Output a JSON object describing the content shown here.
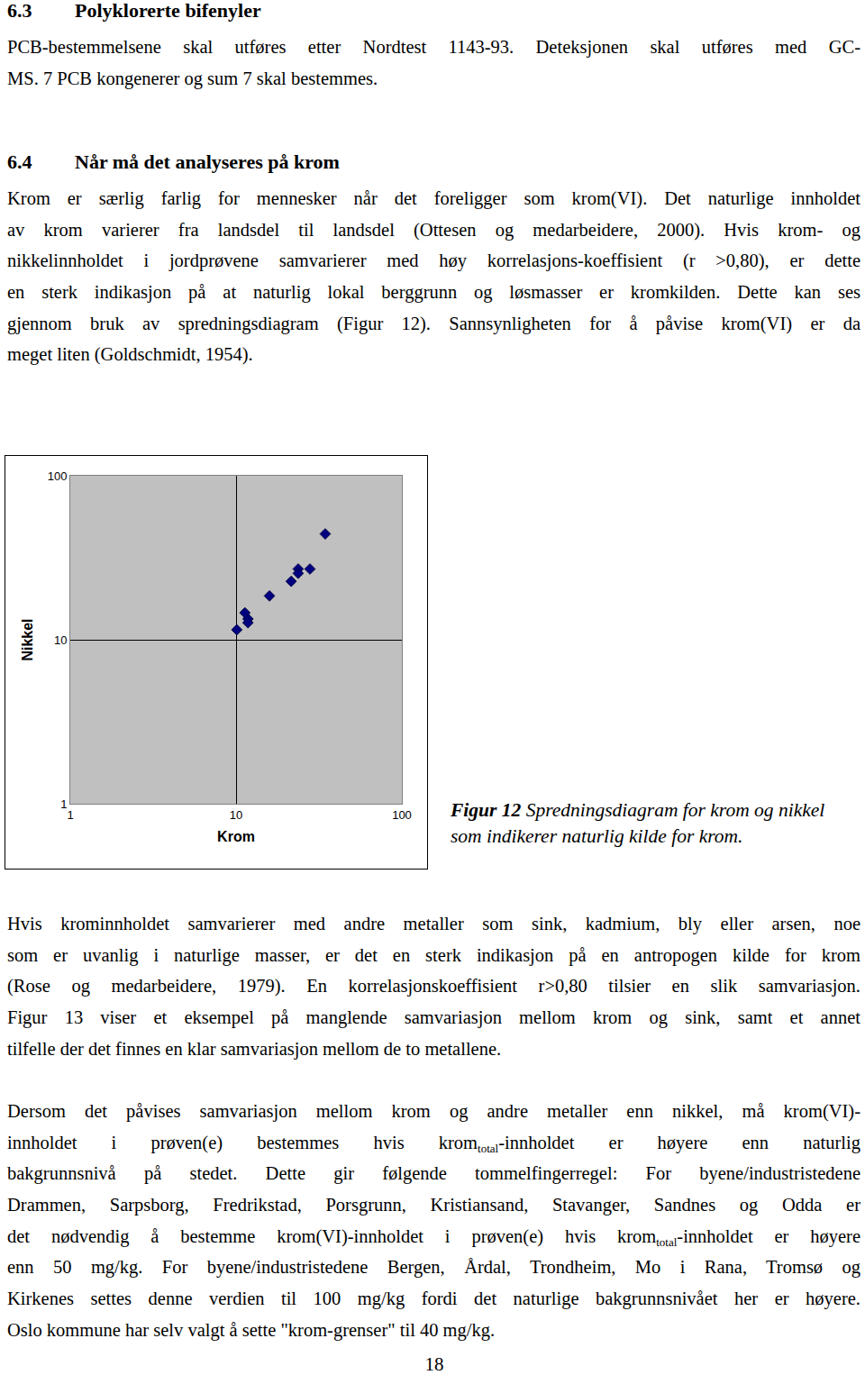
{
  "page": {
    "blocks": [
      {
        "kind": "heading",
        "number": "6.3",
        "title": "Polyklorerte bifenyler"
      },
      {
        "kind": "paragraph",
        "lines": [
          "PCB-bestemmelsene skal utføres etter Nordtest 1143-93. Deteksjonen skal utføres med GC-",
          "MS. 7 PCB kongenerer og sum 7 skal bestemmes."
        ]
      },
      {
        "kind": "heading",
        "number": "6.4",
        "title": "Når må det analyseres på krom"
      },
      {
        "kind": "paragraph",
        "lines": [
          "Krom er særlig farlig for mennesker når det foreligger som krom(VI). Det naturlige innholdet",
          "av krom varierer fra landsdel til landsdel (Ottesen og medarbeidere, 2000). Hvis krom- og",
          "nikkelinnholdet i jordprøvene samvarierer med høy korrelasjons-koeffisient (r >0,80), er dette",
          "en sterk indikasjon på at naturlig lokal berggrunn og løsmasser er kromkilden. Dette kan ses",
          "gjennom bruk av spredningsdiagram (Figur 12). Sannsynligheten for å påvise krom(VI) er da",
          "meget liten (Goldschmidt, 1954)."
        ]
      },
      {
        "kind": "paragraph",
        "lines": [
          "Hvis krominnholdet samvarierer med andre metaller som sink, kadmium, bly eller arsen, noe",
          "som er uvanlig i naturlige masser, er det en sterk indikasjon på en antropogen kilde for krom",
          "(Rose og medarbeidere, 1979). En korrelasjonskoeffisient r>0,80 tilsier en slik samvariasjon.",
          "Figur 13 viser et eksempel på manglende samvariasjon mellom krom og sink, samt et annet",
          "tilfelle der det finnes en klar samvariasjon mellom de to metallene."
        ]
      },
      {
        "kind": "paragraph",
        "lines": [
          "Dersom det påvises samvariasjon mellom krom og andre metaller enn nikkel, må krom(VI)-",
          [
            "innholdet i prøven(e) bestemmes hvis krom",
            {
              "sub": "total"
            },
            "-innholdet er høyere enn naturlig"
          ],
          "bakgrunnsnivå på stedet. Dette gir følgende tommelfingerregel: For byene/industristedene",
          "Drammen, Sarpsborg, Fredrikstad, Porsgrunn, Kristiansand, Stavanger, Sandnes og Odda er",
          [
            "det nødvendig å bestemme krom(VI)-innholdet i prøven(e) hvis krom",
            {
              "sub": "total"
            },
            "-innholdet er høyere"
          ],
          "enn 50 mg/kg. For byene/industristedene Bergen, Årdal, Trondheim, Mo i Rana, Tromsø og",
          "Kirkenes settes denne verdien til 100 mg/kg fordi det naturlige bakgrunnsnivået her er høyere.",
          "Oslo kommune har selv valgt å sette \"krom-grenser\" til 40 mg/kg."
        ]
      }
    ],
    "figure_caption": {
      "label": "Figur 12",
      "text": "Spredningsdiagram for krom og nikkel som indikerer naturlig kilde for krom."
    },
    "page_number": "18"
  },
  "chart_data": {
    "type": "scatter",
    "x_label": "Krom",
    "y_label": "Nikkel",
    "x": [
      10.1,
      11.3,
      11.8,
      11.8,
      15.9,
      21.5,
      23.7,
      23.7,
      27.9,
      34.5
    ],
    "values": [
      11.5,
      14.6,
      13.4,
      12.7,
      18.5,
      22.7,
      27.0,
      25.4,
      27.0,
      44.2
    ],
    "xlim": [
      1,
      100
    ],
    "ylim": [
      1,
      100
    ],
    "xticks": [
      1,
      10,
      100
    ],
    "yticks": [
      1,
      10,
      100
    ],
    "log": true,
    "grid": true,
    "color": "#000080",
    "marker": "diamond"
  }
}
